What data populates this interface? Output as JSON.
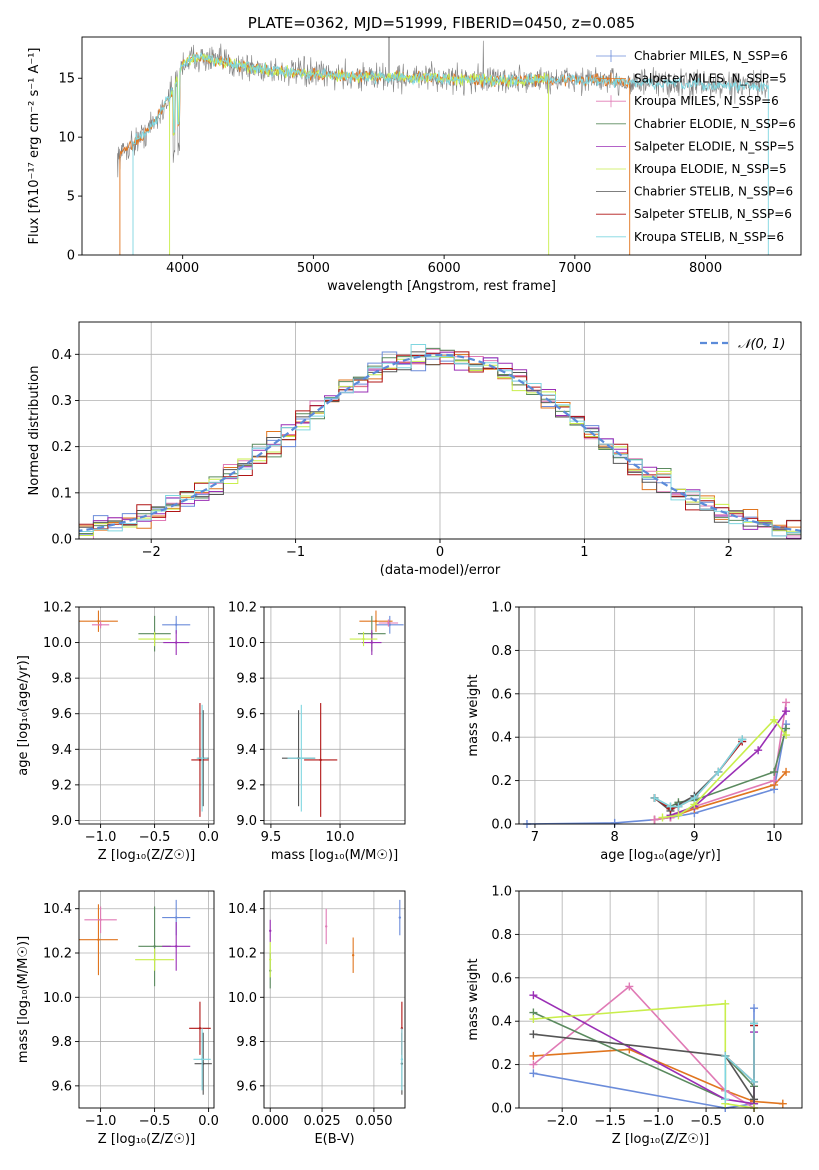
{
  "colors": {
    "chabrier_miles": "#6b8cda",
    "salpeter_miles": "#e0751f",
    "kroupa_miles": "#e07ab5",
    "chabrier_elodie": "#5a8a5e",
    "salpeter_elodie": "#9a2fb5",
    "kroupa_elodie": "#c9ee4c",
    "chabrier_stelib": "#555555",
    "salpeter_stelib": "#b01515",
    "kroupa_stelib": "#7fd6e0",
    "gaussian": "#5b8bd9"
  },
  "chart_data": [
    {
      "type": "line",
      "title": "PLATE=0362, MJD=51999, FIBERID=0450, z=0.085",
      "xlabel": "wavelength [Angstrom, rest frame]",
      "ylabel": "Flux [fλ10⁻¹⁷ erg cm⁻² s⁻¹ A⁻¹]",
      "xlim": [
        3230,
        8730
      ],
      "ylim": [
        0,
        18.5
      ],
      "xticks": [
        "4000",
        "5000",
        "6000",
        "7000",
        "8000"
      ],
      "yticks": [
        "0",
        "5",
        "10",
        "15"
      ],
      "grid": false,
      "legend_position": "right",
      "legend": [
        "Chabrier MILES, N_SSP=6",
        "Salpeter MILES, N_SSP=5",
        "Kroupa MILES, N_SSP=6",
        "Chabrier ELODIE, N_SSP=6",
        "Salpeter ELODIE, N_SSP=5",
        "Kroupa ELODIE, N_SSP=5",
        "Chabrier STELIB, N_SSP=6",
        "Salpeter STELIB, N_SSP=6",
        "Kroupa STELIB, N_SSP=6"
      ],
      "continuum_points": [
        [
          3500,
          8.2
        ],
        [
          3620,
          9.5
        ],
        [
          3700,
          10.2
        ],
        [
          3800,
          11.5
        ],
        [
          3900,
          13.5
        ],
        [
          3950,
          14.8
        ],
        [
          4000,
          16.2
        ],
        [
          4100,
          16.8
        ],
        [
          4300,
          16.4
        ],
        [
          4500,
          15.9
        ],
        [
          5000,
          15.3
        ],
        [
          5500,
          15.1
        ],
        [
          6000,
          15.0
        ],
        [
          6500,
          14.8
        ],
        [
          7000,
          14.9
        ],
        [
          7500,
          14.6
        ],
        [
          8000,
          14.4
        ],
        [
          8500,
          14.3
        ]
      ]
    },
    {
      "type": "line",
      "xlabel": "(data-model)/error",
      "ylabel": "Normed distribution",
      "xlim": [
        -2.5,
        2.5
      ],
      "ylim": [
        0,
        0.47
      ],
      "xticks": [
        "−2",
        "−1",
        "0",
        "1",
        "2"
      ],
      "yticks": [
        "0.0",
        "0.1",
        "0.2",
        "0.3",
        "0.4"
      ],
      "grid": true,
      "legend": [
        "𝒩(0, 1)"
      ],
      "legend_position": "top-right",
      "bin_width": 0.1
    },
    {
      "type": "scatter",
      "xlabel": "Z [log₁₀(Z/Z☉)]",
      "ylabel": "age  [log₁₀(age/yr)]",
      "xlim": [
        -1.2,
        0.05
      ],
      "ylim": [
        8.98,
        10.2
      ],
      "xticks": [
        "−1.0",
        "−0.5",
        "0.0"
      ],
      "yticks": [
        "9.0",
        "9.2",
        "9.4",
        "9.6",
        "9.8",
        "10.0",
        "10.2"
      ],
      "grid": true,
      "points": [
        {
          "s": "chabrier_miles",
          "x": -0.3,
          "y": 10.1,
          "ex": 0.13,
          "ey": 0.05
        },
        {
          "s": "salpeter_miles",
          "x": -1.02,
          "y": 10.12,
          "ex": 0.18,
          "ey": 0.06
        },
        {
          "s": "kroupa_miles",
          "x": -1.0,
          "y": 10.1,
          "ex": 0.08,
          "ey": 0.02
        },
        {
          "s": "chabrier_elodie",
          "x": -0.5,
          "y": 10.05,
          "ex": 0.15,
          "ey": 0.1
        },
        {
          "s": "salpeter_elodie",
          "x": -0.3,
          "y": 10.0,
          "ex": 0.12,
          "ey": 0.07
        },
        {
          "s": "kroupa_elodie",
          "x": -0.5,
          "y": 10.02,
          "ex": 0.15,
          "ey": 0.04
        },
        {
          "s": "chabrier_stelib",
          "x": -0.05,
          "y": 9.35,
          "ex": 0.05,
          "ey": 0.27
        },
        {
          "s": "salpeter_stelib",
          "x": -0.08,
          "y": 9.34,
          "ex": 0.08,
          "ey": 0.32
        },
        {
          "s": "kroupa_stelib",
          "x": -0.06,
          "y": 9.35,
          "ex": 0.05,
          "ey": 0.3
        }
      ]
    },
    {
      "type": "scatter",
      "xlabel": "mass [log₁₀(M/M☉)]",
      "xlim": [
        9.45,
        10.47
      ],
      "ylim": [
        8.98,
        10.2
      ],
      "xticks": [
        "9.5",
        "10.0"
      ],
      "yticks": [
        "9.0",
        "9.2",
        "9.4",
        "9.6",
        "9.8",
        "10.0",
        "10.2"
      ],
      "grid": true,
      "points": [
        {
          "s": "chabrier_miles",
          "x": 10.36,
          "y": 10.1,
          "ex": 0.1,
          "ey": 0.05
        },
        {
          "s": "salpeter_miles",
          "x": 10.26,
          "y": 10.12,
          "ex": 0.12,
          "ey": 0.06
        },
        {
          "s": "kroupa_miles",
          "x": 10.35,
          "y": 10.11,
          "ex": 0.07,
          "ey": 0.02
        },
        {
          "s": "chabrier_elodie",
          "x": 10.23,
          "y": 10.05,
          "ex": 0.1,
          "ey": 0.1
        },
        {
          "s": "salpeter_elodie",
          "x": 10.23,
          "y": 10.0,
          "ex": 0.07,
          "ey": 0.07
        },
        {
          "s": "kroupa_elodie",
          "x": 10.17,
          "y": 10.02,
          "ex": 0.1,
          "ey": 0.04
        },
        {
          "s": "chabrier_stelib",
          "x": 9.7,
          "y": 9.35,
          "ex": 0.12,
          "ey": 0.27
        },
        {
          "s": "salpeter_stelib",
          "x": 9.86,
          "y": 9.34,
          "ex": 0.12,
          "ey": 0.32
        },
        {
          "s": "kroupa_stelib",
          "x": 9.72,
          "y": 9.35,
          "ex": 0.1,
          "ey": 0.3
        }
      ]
    },
    {
      "type": "line",
      "xlabel": "age  [log₁₀(age/yr)]",
      "ylabel": "mass weight",
      "xlim": [
        6.8,
        10.35
      ],
      "ylim": [
        0,
        1.0
      ],
      "xticks": [
        "7",
        "8",
        "9",
        "10"
      ],
      "yticks": [
        "0.0",
        "0.2",
        "0.4",
        "0.6",
        "0.8",
        "1.0"
      ],
      "grid": true,
      "series": [
        {
          "s": "chabrier_miles",
          "x": [
            6.9,
            8.0,
            8.5,
            8.7,
            9.0,
            10.0,
            10.15
          ],
          "y": [
            0.0,
            0.005,
            0.02,
            0.03,
            0.05,
            0.16,
            0.46
          ]
        },
        {
          "s": "salpeter_miles",
          "x": [
            8.5,
            8.7,
            9.0,
            10.0,
            10.15
          ],
          "y": [
            0.02,
            0.03,
            0.07,
            0.18,
            0.24
          ]
        },
        {
          "s": "kroupa_miles",
          "x": [
            8.5,
            8.7,
            8.8,
            9.0,
            10.0,
            10.15
          ],
          "y": [
            0.02,
            0.03,
            0.05,
            0.08,
            0.2,
            0.56
          ]
        },
        {
          "s": "chabrier_elodie",
          "x": [
            8.5,
            8.7,
            8.8,
            9.0,
            10.0,
            10.15
          ],
          "y": [
            0.12,
            0.08,
            0.1,
            0.11,
            0.24,
            0.44
          ]
        },
        {
          "s": "salpeter_elodie",
          "x": [
            8.7,
            9.0,
            9.8,
            10.15
          ],
          "y": [
            0.04,
            0.08,
            0.34,
            0.52
          ]
        },
        {
          "s": "kroupa_elodie",
          "x": [
            8.6,
            8.8,
            9.0,
            10.0,
            10.15
          ],
          "y": [
            0.03,
            0.04,
            0.09,
            0.48,
            0.41
          ]
        },
        {
          "s": "chabrier_stelib",
          "x": [
            8.5,
            8.7,
            8.8,
            9.0,
            9.3,
            9.6
          ],
          "y": [
            0.12,
            0.06,
            0.09,
            0.13,
            0.24,
            0.39
          ]
        },
        {
          "s": "salpeter_stelib",
          "x": [
            8.5,
            8.7,
            8.8,
            9.0,
            9.3,
            9.6
          ],
          "y": [
            0.12,
            0.07,
            0.08,
            0.12,
            0.24,
            0.38
          ]
        },
        {
          "s": "kroupa_stelib",
          "x": [
            8.5,
            8.7,
            8.8,
            9.0,
            9.3,
            9.6
          ],
          "y": [
            0.12,
            0.08,
            0.08,
            0.12,
            0.24,
            0.39
          ]
        }
      ]
    },
    {
      "type": "scatter",
      "xlabel": "Z [log₁₀(Z/Z☉)]",
      "ylabel": "mass [log₁₀(M/M☉)]",
      "xlim": [
        -1.2,
        0.05
      ],
      "ylim": [
        9.5,
        10.48
      ],
      "xticks": [
        "−1.0",
        "−0.5",
        "0.0"
      ],
      "yticks": [
        "9.6",
        "9.8",
        "10.0",
        "10.2",
        "10.4"
      ],
      "grid": true,
      "points": [
        {
          "s": "chabrier_miles",
          "x": -0.3,
          "y": 10.36,
          "ex": 0.13,
          "ey": 0.08
        },
        {
          "s": "salpeter_miles",
          "x": -1.02,
          "y": 10.26,
          "ex": 0.18,
          "ey": 0.16
        },
        {
          "s": "kroupa_miles",
          "x": -1.0,
          "y": 10.35,
          "ex": 0.15,
          "ey": 0.06
        },
        {
          "s": "chabrier_elodie",
          "x": -0.5,
          "y": 10.23,
          "ex": 0.15,
          "ey": 0.18
        },
        {
          "s": "salpeter_elodie",
          "x": -0.3,
          "y": 10.23,
          "ex": 0.13,
          "ey": 0.11
        },
        {
          "s": "kroupa_elodie",
          "x": -0.5,
          "y": 10.17,
          "ex": 0.18,
          "ey": 0.05
        },
        {
          "s": "chabrier_stelib",
          "x": -0.05,
          "y": 9.7,
          "ex": 0.08,
          "ey": 0.14
        },
        {
          "s": "salpeter_stelib",
          "x": -0.08,
          "y": 9.86,
          "ex": 0.1,
          "ey": 0.12
        },
        {
          "s": "kroupa_stelib",
          "x": -0.06,
          "y": 9.72,
          "ex": 0.08,
          "ey": 0.14
        }
      ]
    },
    {
      "type": "scatter",
      "xlabel": "E(B-V)",
      "xlim": [
        -0.003,
        0.065
      ],
      "ylim": [
        9.5,
        10.48
      ],
      "xticks": [
        "0.000",
        "0.025",
        "0.050"
      ],
      "yticks": [
        "9.6",
        "9.8",
        "10.0",
        "10.2",
        "10.4"
      ],
      "grid": true,
      "points": [
        {
          "s": "chabrier_miles",
          "x": 0.0625,
          "y": 10.36,
          "ex": 0,
          "ey": 0.08
        },
        {
          "s": "salpeter_miles",
          "x": 0.04,
          "y": 10.19,
          "ex": 0,
          "ey": 0.08
        },
        {
          "s": "kroupa_miles",
          "x": 0.027,
          "y": 10.32,
          "ex": 0,
          "ey": 0.08
        },
        {
          "s": "chabrier_elodie",
          "x": 0.0,
          "y": 10.12,
          "ex": 0,
          "ey": 0.08
        },
        {
          "s": "salpeter_elodie",
          "x": 0.0,
          "y": 10.3,
          "ex": 0,
          "ey": 0.05
        },
        {
          "s": "kroupa_elodie",
          "x": 0.0,
          "y": 10.17,
          "ex": 0,
          "ey": 0.08
        },
        {
          "s": "chabrier_stelib",
          "x": 0.0635,
          "y": 9.7,
          "ex": 0,
          "ey": 0.14
        },
        {
          "s": "salpeter_stelib",
          "x": 0.0635,
          "y": 9.86,
          "ex": 0,
          "ey": 0.12
        },
        {
          "s": "kroupa_stelib",
          "x": 0.0635,
          "y": 9.72,
          "ex": 0,
          "ey": 0.14
        }
      ]
    },
    {
      "type": "line",
      "xlabel": "Z [log₁₀(Z/Z☉)]",
      "ylabel": "mass weight",
      "xlim": [
        -2.45,
        0.5
      ],
      "ylim": [
        0,
        1.0
      ],
      "xticks": [
        "−2.0",
        "−1.5",
        "−1.0",
        "−0.5",
        "0.0"
      ],
      "yticks": [
        "0.0",
        "0.2",
        "0.4",
        "0.6",
        "0.8",
        "1.0"
      ],
      "grid": true,
      "series": [
        {
          "s": "chabrier_miles",
          "x": [
            -2.3,
            -0.3,
            0.0,
            0.0
          ],
          "y": [
            0.16,
            0.0,
            0.02,
            0.46
          ]
        },
        {
          "s": "salpeter_miles",
          "x": [
            -2.3,
            -1.3,
            -0.3,
            0.0,
            0.3
          ],
          "y": [
            0.24,
            0.27,
            0.08,
            0.03,
            0.02
          ]
        },
        {
          "s": "kroupa_miles",
          "x": [
            -2.3,
            -1.3,
            -0.3,
            0.0
          ],
          "y": [
            0.2,
            0.56,
            0.08,
            0.0
          ]
        },
        {
          "s": "chabrier_elodie",
          "x": [
            -2.3,
            -0.3,
            -0.3,
            0.0,
            0.0
          ],
          "y": [
            0.44,
            0.04,
            0.24,
            0.1,
            0.02
          ]
        },
        {
          "s": "salpeter_elodie",
          "x": [
            -2.3,
            -0.3,
            0.0,
            0.0
          ],
          "y": [
            0.52,
            0.04,
            0.02,
            0.35
          ]
        },
        {
          "s": "kroupa_elodie",
          "x": [
            -2.3,
            -0.3,
            -0.3,
            0.0
          ],
          "y": [
            0.41,
            0.48,
            0.02,
            0.0
          ]
        },
        {
          "s": "chabrier_stelib",
          "x": [
            -2.3,
            -0.3,
            0.0,
            0.0
          ],
          "y": [
            0.34,
            0.24,
            0.04,
            0.39
          ]
        },
        {
          "s": "salpeter_stelib",
          "x": [
            -0.3,
            0.0,
            0.0
          ],
          "y": [
            0.24,
            0.12,
            0.38
          ]
        },
        {
          "s": "kroupa_stelib",
          "x": [
            -0.3,
            -0.3,
            0.0,
            0.0
          ],
          "y": [
            0.04,
            0.24,
            0.12,
            0.39
          ]
        }
      ]
    }
  ]
}
